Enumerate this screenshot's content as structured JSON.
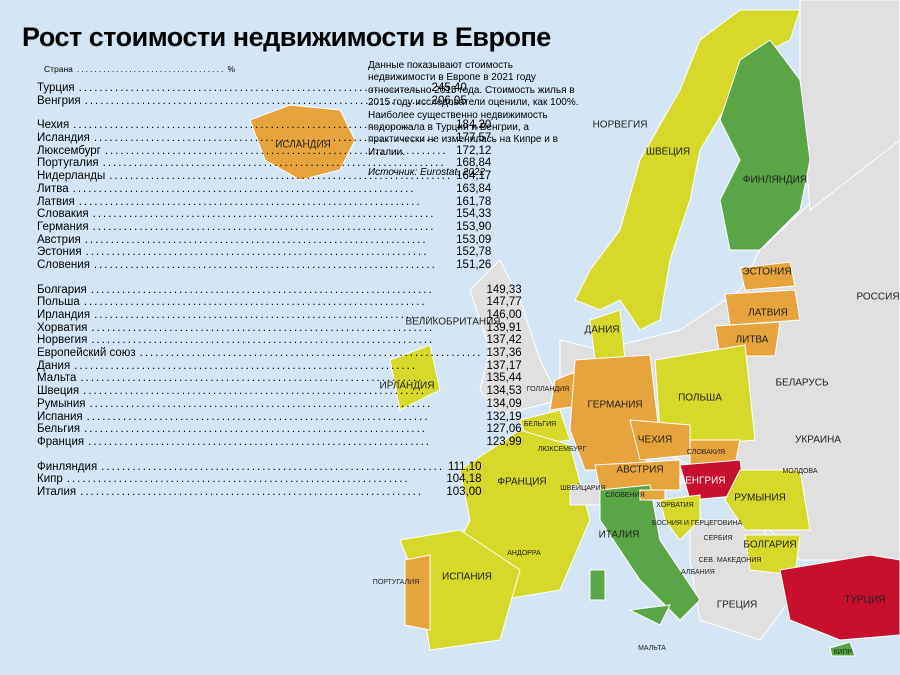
{
  "title": "Рост стоимости недвижимости в Европе",
  "table": {
    "header": {
      "country": "Страна",
      "unit": "%"
    },
    "groups": [
      {
        "color": "#c8102e",
        "rows": [
          [
            "Турция",
            "245,40"
          ],
          [
            "Венгрия",
            "206,05"
          ]
        ]
      },
      {
        "color": "#e8a43c",
        "rows": [
          [
            "Чехия",
            "184,20"
          ],
          [
            "Исландия",
            "177,57"
          ],
          [
            "Люксембург",
            "172,12"
          ],
          [
            "Португалия",
            "168,84"
          ],
          [
            "Нидерланды",
            "164,17"
          ],
          [
            "Литва",
            "163,84"
          ],
          [
            "Латвия",
            "161,78"
          ],
          [
            "Словакия",
            "154,33"
          ],
          [
            "Германия",
            "153,90"
          ],
          [
            "Австрия",
            "153,09"
          ],
          [
            "Эстония",
            "152,78"
          ],
          [
            "Словения",
            "151,26"
          ]
        ]
      },
      {
        "color": "#d6d92a",
        "rows": [
          [
            "Болгария",
            "149,33"
          ],
          [
            "Польша",
            "147,77"
          ],
          [
            "Ирландия",
            "146,00"
          ],
          [
            "Хорватия",
            "139,91"
          ],
          [
            "Норвегия",
            "137,42"
          ],
          [
            "Европейский союз",
            "137,36"
          ],
          [
            "Дания",
            "137,17"
          ],
          [
            "Мальта",
            "135,44"
          ],
          [
            "Швеция",
            "134,53"
          ],
          [
            "Румыния",
            "134,09"
          ],
          [
            "Испания",
            "132,19"
          ],
          [
            "Бельгия",
            "127,06"
          ],
          [
            "Франция",
            "123,99"
          ]
        ]
      },
      {
        "color": "#5aa646",
        "rows": [
          [
            "Финляндия",
            "111,10"
          ],
          [
            "Кипр",
            "104,18"
          ],
          [
            "Италия",
            "103,00"
          ]
        ]
      }
    ]
  },
  "description": [
    "Данные показывают стоимость недвижимости в Европе в 2021 году относительно 2015 года. Стоимость жилья в 2015 году исследователи оценили, как 100%.",
    "Наиболее существенно недвижимость подорожала в Турции и Венгрии, а практически не изменилась на Кипре и в Италии."
  ],
  "source": "Источник: Eurostat, 2022",
  "map_labels": [
    "ИСЛАНДИЯ",
    "НОРВЕГИЯ",
    "ШВЕЦИЯ",
    "ФИНЛЯНДИЯ",
    "ЭСТОНИЯ",
    "ЛАТВИЯ",
    "ЛИТВА",
    "РОССИЯ",
    "ВЕЛИКОБРИТАНИЯ",
    "ДАНИЯ",
    "ИРЛАНДИЯ",
    "ГОЛЛАНДИЯ",
    "БЕЛЬГИЯ",
    "ЛЮКСЕМБУРГ",
    "ГЕРМАНИЯ",
    "ПОЛЬША",
    "БЕЛАРУСЬ",
    "УКРАИНА",
    "ЧЕХИЯ",
    "СЛОВАКИЯ",
    "МОЛДОВА",
    "ФРАНЦИЯ",
    "ШВЕЙЦАРИЯ",
    "АВСТРИЯ",
    "ВЕНГРИЯ",
    "РУМЫНИЯ",
    "СЛОВЕНИЯ",
    "ХОРВАТИЯ",
    "БОСНИЯ И ГЕРЦЕГОВИНА",
    "СЕРБИЯ",
    "БОЛГАРИЯ",
    "СЕВ. МАКЕДОНИЯ",
    "ИТАЛИЯ",
    "АНДОРРА",
    "АЛБАНИЯ",
    "ПОРТУГАЛИЯ",
    "ИСПАНИЯ",
    "ГРЕЦИЯ",
    "ТУРЦИЯ",
    "МАЛЬТА",
    "КИПР"
  ]
}
